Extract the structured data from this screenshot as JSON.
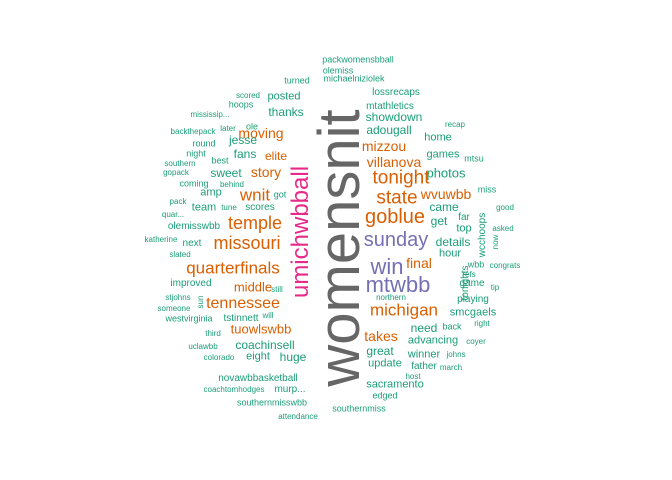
{
  "colors": {
    "teal": "#1b9e77",
    "orange": "#d95f02",
    "purple": "#7570b3",
    "magenta": "#e7298a",
    "gray": "#666666"
  },
  "words": [
    {
      "text": "womensnit",
      "color": "gray",
      "rot": true
    },
    {
      "text": "umichwbball",
      "color": "magenta",
      "rot": true
    },
    {
      "text": "mtwbb",
      "color": "purple"
    },
    {
      "text": "win",
      "color": "purple"
    },
    {
      "text": "sunday",
      "color": "purple"
    },
    {
      "text": "goblue",
      "color": "orange"
    },
    {
      "text": "state",
      "color": "orange"
    },
    {
      "text": "tonight",
      "color": "orange"
    },
    {
      "text": "michigan",
      "color": "orange"
    },
    {
      "text": "temple",
      "color": "orange"
    },
    {
      "text": "missouri",
      "color": "orange"
    },
    {
      "text": "quarterfinals",
      "color": "orange"
    },
    {
      "text": "tennessee",
      "color": "orange"
    },
    {
      "text": "wnit",
      "color": "orange"
    },
    {
      "text": "story",
      "color": "orange"
    },
    {
      "text": "moving",
      "color": "orange"
    },
    {
      "text": "villanova",
      "color": "orange"
    },
    {
      "text": "mizzou",
      "color": "orange"
    },
    {
      "text": "wvuwbb",
      "color": "orange"
    },
    {
      "text": "final",
      "color": "orange"
    },
    {
      "text": "takes",
      "color": "orange"
    },
    {
      "text": "tuowlswbb",
      "color": "orange"
    },
    {
      "text": "middle",
      "color": "orange"
    },
    {
      "text": "elite",
      "color": "orange"
    },
    {
      "text": "thanks",
      "color": "teal"
    },
    {
      "text": "posted",
      "color": "teal"
    },
    {
      "text": "adougall",
      "color": "teal"
    },
    {
      "text": "showdown",
      "color": "teal"
    },
    {
      "text": "mtathletics",
      "color": "teal"
    },
    {
      "text": "lossrecaps",
      "color": "teal"
    },
    {
      "text": "michaelniziolek",
      "color": "teal"
    },
    {
      "text": "turned",
      "color": "teal"
    },
    {
      "text": "olemiss",
      "color": "teal"
    },
    {
      "text": "packwomensbball",
      "color": "teal"
    },
    {
      "text": "home",
      "color": "teal"
    },
    {
      "text": "games",
      "color": "teal"
    },
    {
      "text": "recap",
      "color": "teal"
    },
    {
      "text": "mtsu",
      "color": "teal"
    },
    {
      "text": "photos",
      "color": "teal"
    },
    {
      "text": "came",
      "color": "teal"
    },
    {
      "text": "get",
      "color": "teal"
    },
    {
      "text": "top",
      "color": "teal"
    },
    {
      "text": "far",
      "color": "teal"
    },
    {
      "text": "details",
      "color": "teal"
    },
    {
      "text": "hour",
      "color": "teal"
    },
    {
      "text": "tonights",
      "color": "teal",
      "rot": true
    },
    {
      "text": "wcchoops",
      "color": "teal",
      "rot": true
    },
    {
      "text": "miss",
      "color": "teal"
    },
    {
      "text": "good",
      "color": "teal"
    },
    {
      "text": "asked",
      "color": "teal"
    },
    {
      "text": "now",
      "color": "teal",
      "rot": true
    },
    {
      "text": "wbb",
      "color": "teal"
    },
    {
      "text": "congrats",
      "color": "teal"
    },
    {
      "text": "refs",
      "color": "teal"
    },
    {
      "text": "game",
      "color": "teal"
    },
    {
      "text": "tip",
      "color": "teal"
    },
    {
      "text": "playing",
      "color": "teal"
    },
    {
      "text": "smcgaels",
      "color": "teal"
    },
    {
      "text": "right",
      "color": "teal"
    },
    {
      "text": "need",
      "color": "teal"
    },
    {
      "text": "back",
      "color": "teal"
    },
    {
      "text": "advancing",
      "color": "teal"
    },
    {
      "text": "coyer",
      "color": "teal"
    },
    {
      "text": "winner",
      "color": "teal"
    },
    {
      "text": "johns",
      "color": "teal"
    },
    {
      "text": "father",
      "color": "teal"
    },
    {
      "text": "march",
      "color": "teal"
    },
    {
      "text": "great",
      "color": "teal"
    },
    {
      "text": "update",
      "color": "teal"
    },
    {
      "text": "host",
      "color": "teal"
    },
    {
      "text": "sacramento",
      "color": "teal"
    },
    {
      "text": "edged",
      "color": "teal"
    },
    {
      "text": "southernmiss",
      "color": "teal"
    },
    {
      "text": "southernmisswbb",
      "color": "teal"
    },
    {
      "text": "attendance",
      "color": "teal"
    },
    {
      "text": "novawbbasketball",
      "color": "teal"
    },
    {
      "text": "murp...",
      "color": "teal"
    },
    {
      "text": "coachtomhodges",
      "color": "teal"
    },
    {
      "text": "eight",
      "color": "teal"
    },
    {
      "text": "huge",
      "color": "teal"
    },
    {
      "text": "colorado",
      "color": "teal"
    },
    {
      "text": "uclawbb",
      "color": "teal"
    },
    {
      "text": "coachinsell",
      "color": "teal"
    },
    {
      "text": "third",
      "color": "teal"
    },
    {
      "text": "will",
      "color": "teal"
    },
    {
      "text": "tstinnett",
      "color": "teal"
    },
    {
      "text": "westvirginia",
      "color": "teal"
    },
    {
      "text": "someone",
      "color": "teal"
    },
    {
      "text": "sun",
      "color": "teal",
      "rot": true
    },
    {
      "text": "stjohns",
      "color": "teal"
    },
    {
      "text": "still",
      "color": "teal"
    },
    {
      "text": "northern",
      "color": "teal"
    },
    {
      "text": "improved",
      "color": "teal"
    },
    {
      "text": "slated",
      "color": "teal"
    },
    {
      "text": "next",
      "color": "teal"
    },
    {
      "text": "katherine",
      "color": "teal"
    },
    {
      "text": "olemisswbb",
      "color": "teal"
    },
    {
      "text": "quar...",
      "color": "teal"
    },
    {
      "text": "team",
      "color": "teal"
    },
    {
      "text": "pack",
      "color": "teal"
    },
    {
      "text": "amp",
      "color": "teal"
    },
    {
      "text": "tune",
      "color": "teal"
    },
    {
      "text": "scores",
      "color": "teal"
    },
    {
      "text": "got",
      "color": "teal"
    },
    {
      "text": "sweet",
      "color": "teal"
    },
    {
      "text": "coming",
      "color": "teal"
    },
    {
      "text": "behind",
      "color": "teal"
    },
    {
      "text": "gopack",
      "color": "teal"
    },
    {
      "text": "southern",
      "color": "teal"
    },
    {
      "text": "best",
      "color": "teal"
    },
    {
      "text": "night",
      "color": "teal"
    },
    {
      "text": "fans",
      "color": "teal"
    },
    {
      "text": "round",
      "color": "teal"
    },
    {
      "text": "jesse",
      "color": "teal"
    },
    {
      "text": "backthepack",
      "color": "teal"
    },
    {
      "text": "later",
      "color": "teal"
    },
    {
      "text": "ole",
      "color": "teal"
    },
    {
      "text": "mississip...",
      "color": "teal"
    },
    {
      "text": "hoops",
      "color": "teal"
    },
    {
      "text": "scored",
      "color": "teal"
    }
  ]
}
